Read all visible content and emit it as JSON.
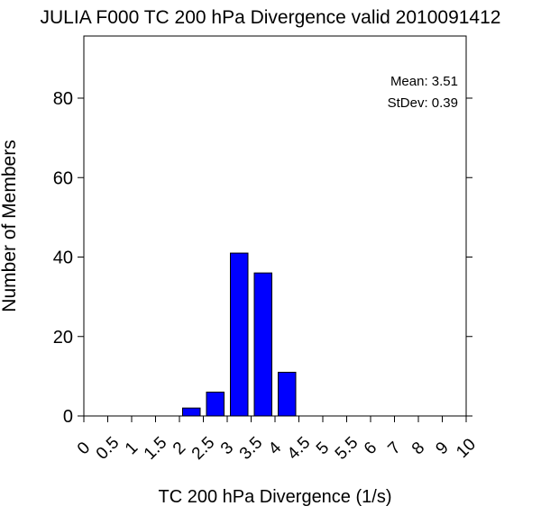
{
  "chart_data": {
    "type": "bar",
    "title": "JULIA F000 TC 200 hPa Divergence valid 2010091412",
    "xlabel": "TC 200 hPa Divergence (1/s)",
    "ylabel": "Number of Members",
    "x_tick_labels": [
      "0",
      "0.5",
      "1",
      "1.5",
      "2",
      "2.5",
      "3",
      "3.5",
      "4",
      "4.5",
      "5",
      "5.5",
      "6",
      "7",
      "8",
      "9",
      "10"
    ],
    "y_ticks": [
      0,
      20,
      40,
      60,
      80
    ],
    "ylim": [
      0,
      95
    ],
    "categories": [
      "0",
      "0.5",
      "1",
      "1.5",
      "2",
      "2.5",
      "3",
      "3.5",
      "4",
      "4.5",
      "5",
      "5.5",
      "6",
      "7",
      "8",
      "9"
    ],
    "values": [
      0,
      0,
      0,
      0,
      2,
      6,
      41,
      36,
      11,
      0,
      0,
      0,
      0,
      0,
      0,
      0
    ],
    "bar_color": "#0000ff",
    "annotations": {
      "mean": "Mean: 3.51",
      "stdev": "StDev: 0.39"
    },
    "grid": false
  }
}
